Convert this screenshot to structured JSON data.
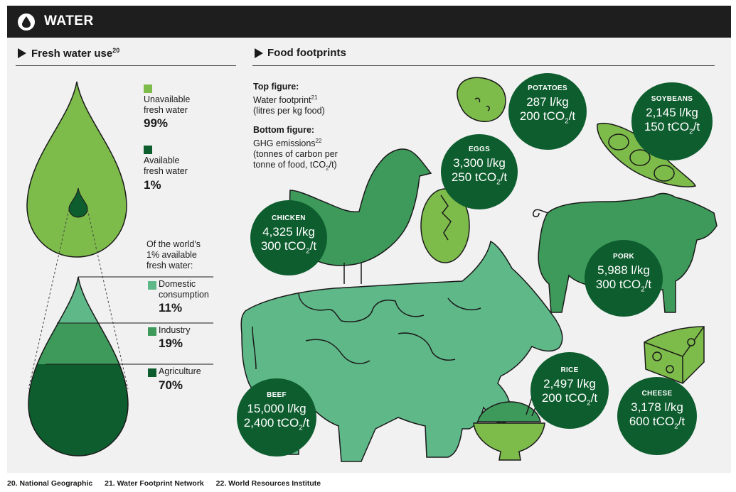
{
  "header": {
    "title": "WATER",
    "icon": "water-drop-icon"
  },
  "fresh_water": {
    "title": "Fresh water use",
    "title_ref": "20",
    "unavailable": {
      "label_1": "Unavailable",
      "label_2": "fresh water",
      "value": "99%",
      "color": "#7dbb4a"
    },
    "available": {
      "label_1": "Available",
      "label_2": "fresh water",
      "value": "1%",
      "color": "#0d5d2e"
    },
    "of_world_1": "Of the world's",
    "of_world_2": "1% available",
    "of_world_3": "fresh water:",
    "domestic": {
      "label_1": "Domestic",
      "label_2": "consumption",
      "value": "11%",
      "color": "#5fb888"
    },
    "industry": {
      "label": "Industry",
      "value": "19%",
      "color": "#3d9a5a"
    },
    "agriculture": {
      "label": "Agriculture",
      "value": "70%",
      "color": "#0d5d2e"
    }
  },
  "food": {
    "title": "Food footprints",
    "top_fig_title": "Top figure:",
    "top_fig_1": "Water footprint",
    "top_fig_ref": "21",
    "top_fig_2": "(litres per kg food)",
    "bottom_fig_title": "Bottom figure:",
    "bottom_fig_1": "GHG emissions",
    "bottom_fig_ref": "22",
    "bottom_fig_2": "(tonnes of carbon per",
    "bottom_fig_3a": "tonne of food, tCO",
    "bottom_fig_3b": "2",
    "bottom_fig_3c": "/t)",
    "items": {
      "potatoes": {
        "name": "POTATOES",
        "water": "287 l/kg",
        "ghg": "200 tCO",
        "unit": "/t"
      },
      "soybeans": {
        "name": "SOYBEANS",
        "water": "2,145 l/kg",
        "ghg": "150 tCO",
        "unit": "/t"
      },
      "eggs": {
        "name": "EGGS",
        "water": "3,300 l/kg",
        "ghg": "250 tCO",
        "unit": "/t"
      },
      "chicken": {
        "name": "CHICKEN",
        "water": "4,325 l/kg",
        "ghg": "300 tCO",
        "unit": "/t"
      },
      "pork": {
        "name": "PORK",
        "water": "5,988 l/kg",
        "ghg": "300 tCO",
        "unit": "/t"
      },
      "beef": {
        "name": "BEEF",
        "water": "15,000 l/kg",
        "ghg": "2,400 tCO",
        "unit": "/t"
      },
      "rice": {
        "name": "RICE",
        "water": "2,497 l/kg",
        "ghg": "200 tCO",
        "unit": "/t"
      },
      "cheese": {
        "name": "CHEESE",
        "water": "3,178 l/kg",
        "ghg": "600 tCO",
        "unit": "/t"
      }
    },
    "subscript": "2"
  },
  "footer": {
    "ref20": "20. National Geographic",
    "ref21": "21. Water Footprint Network",
    "ref22": "22. World Resources Institute"
  }
}
